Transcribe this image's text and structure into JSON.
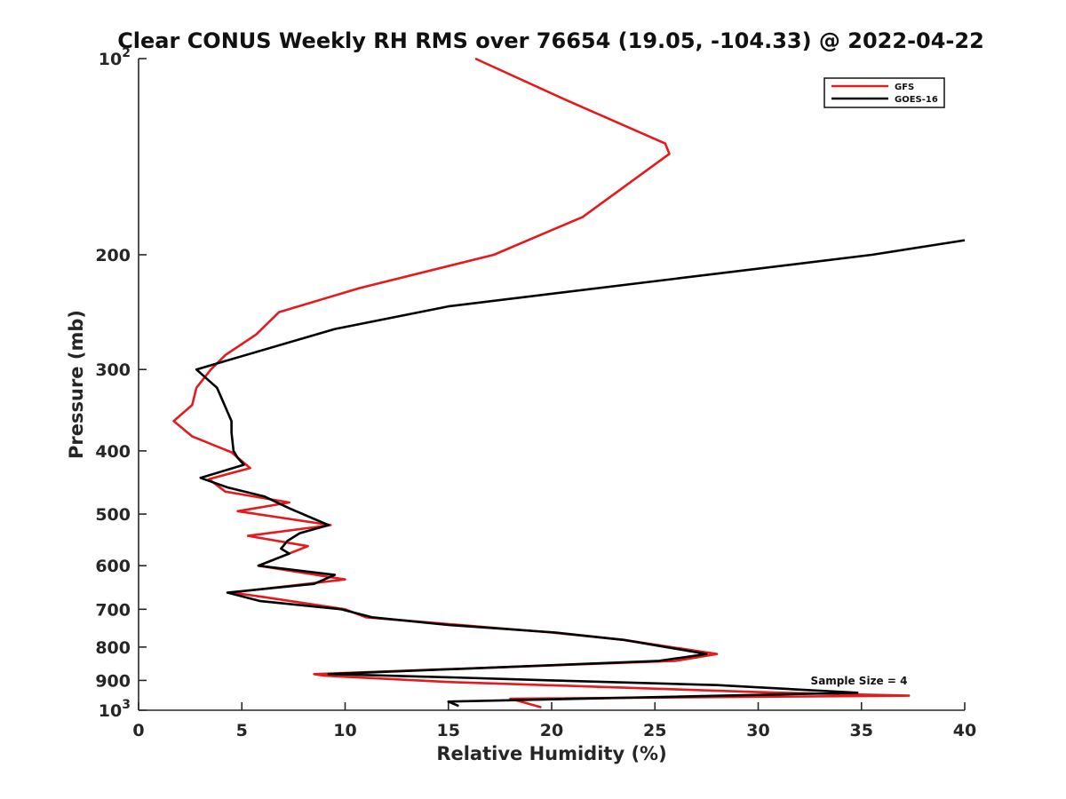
{
  "chart_data": {
    "type": "line",
    "title": "Clear CONUS Weekly RH RMS over 76654 (19.05, -104.33) @ 2022-04-22",
    "xlabel": "Relative Humidity (%)",
    "ylabel": "Pressure (mb)",
    "xlim": [
      0,
      40
    ],
    "ylim": [
      100,
      1000
    ],
    "yscale": "log",
    "y_reversed": true,
    "x_ticks": [
      0,
      5,
      10,
      15,
      20,
      25,
      30,
      35,
      40
    ],
    "y_ticks": [
      {
        "value": 100,
        "label": "10",
        "sup": "2"
      },
      {
        "value": 200,
        "label": "200"
      },
      {
        "value": 300,
        "label": "300"
      },
      {
        "value": 400,
        "label": "400"
      },
      {
        "value": 500,
        "label": "500"
      },
      {
        "value": 600,
        "label": "600"
      },
      {
        "value": 700,
        "label": "700"
      },
      {
        "value": 800,
        "label": "800"
      },
      {
        "value": 900,
        "label": "900"
      },
      {
        "value": 1000,
        "label": "10",
        "sup": "3"
      }
    ],
    "legend_position": "top-right",
    "annotation": "Sample Size = 4",
    "series": [
      {
        "name": "GFS",
        "color": "#e41a1c",
        "x": [
          16.3,
          20.5,
          25.5,
          25.7,
          21.5,
          17.2,
          10.7,
          6.8,
          5.7,
          4.2,
          3.5,
          2.8,
          2.6,
          1.7,
          2.6,
          4.5,
          5.4,
          3.4,
          4.2,
          7.3,
          4.8,
          9.3,
          5.3,
          8.2,
          5.8,
          10.0,
          4.5,
          6.0,
          10.0,
          11.0,
          20.0,
          23.5,
          28.0,
          26.0,
          8.5,
          9.0,
          15.0,
          22.0,
          31.0,
          37.3,
          18.0,
          19.5
        ],
        "y": [
          100,
          115,
          135,
          140,
          175,
          200,
          225,
          245,
          265,
          285,
          300,
          320,
          340,
          360,
          380,
          402,
          425,
          442,
          462,
          480,
          495,
          520,
          540,
          560,
          600,
          630,
          660,
          670,
          700,
          720,
          760,
          780,
          820,
          840,
          880,
          885,
          905,
          920,
          940,
          950,
          960,
          990
        ]
      },
      {
        "name": "GOES-16",
        "color": "#000000",
        "x": [
          40.0,
          35.5,
          15.0,
          9.5,
          2.8,
          3.8,
          4.5,
          4.5,
          4.6,
          4.8,
          5.1,
          3.0,
          4.3,
          6.1,
          7.3,
          9.2,
          7.8,
          7.2,
          6.9,
          7.3,
          5.8,
          9.5,
          8.5,
          4.3,
          5.9,
          9.8,
          11.3,
          15.0,
          20.2,
          23.5,
          27.5,
          25.2,
          9.2,
          15.0,
          20.0,
          28.0,
          34.8,
          15.0,
          15.5
        ],
        "y": [
          190,
          200,
          240,
          260,
          300,
          320,
          360,
          375,
          400,
          410,
          420,
          440,
          455,
          470,
          490,
          520,
          535,
          550,
          565,
          575,
          600,
          620,
          640,
          660,
          680,
          700,
          720,
          740,
          760,
          780,
          820,
          840,
          880,
          890,
          900,
          915,
          940,
          970,
          985
        ]
      }
    ]
  }
}
